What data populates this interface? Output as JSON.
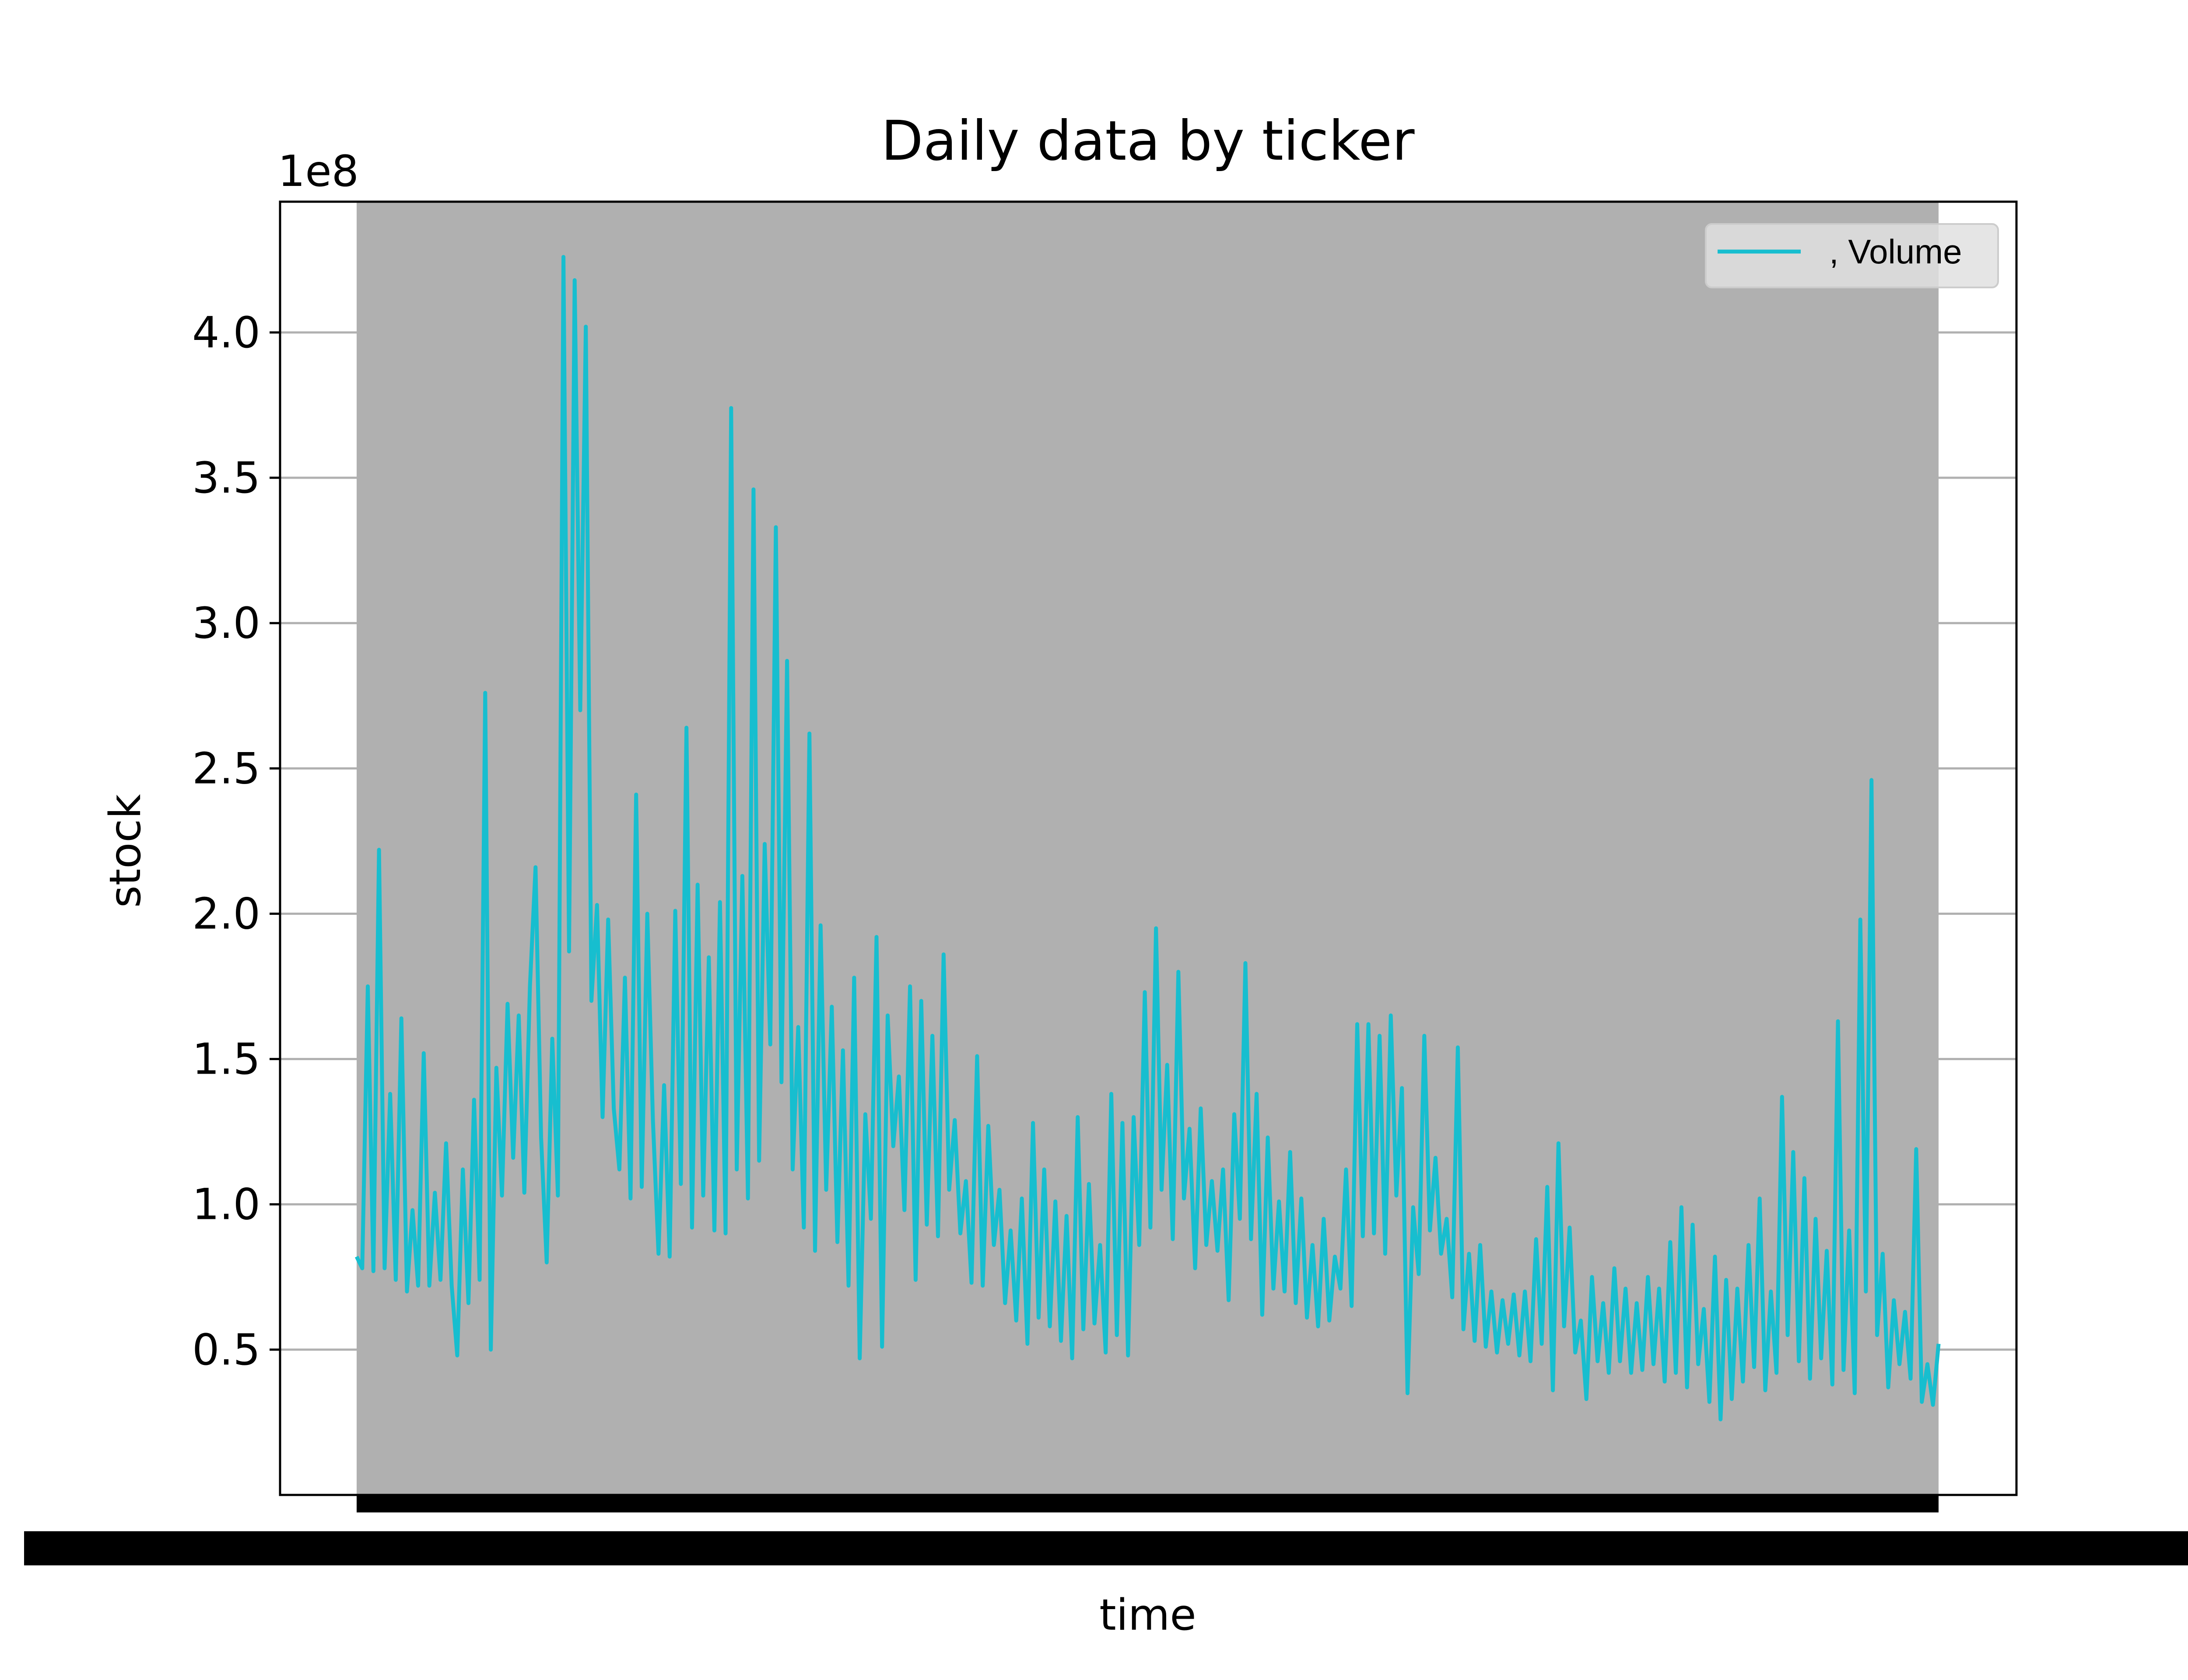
{
  "chart_data": {
    "type": "line",
    "title": "Daily data by ticker",
    "xlabel": "time",
    "ylabel": "stock",
    "y_offset_label": "1e8",
    "ylim": [
      0.0,
      4.45
    ],
    "yticks": [
      0.5,
      1.0,
      1.5,
      2.0,
      2.5,
      3.0,
      3.5,
      4.0
    ],
    "ytick_labels": [
      "0.5",
      "1.0",
      "1.5",
      "2.0",
      "2.5",
      "3.0",
      "3.5",
      "4.0"
    ],
    "grid": "horizontal",
    "legend_position": "upper-right",
    "plot_background": "#b0b0b0",
    "line_color": "#17becf",
    "series": [
      {
        "name": ", Volume",
        "values": [
          0.82,
          0.78,
          1.75,
          0.77,
          2.22,
          0.78,
          1.38,
          0.74,
          1.64,
          0.7,
          0.98,
          0.72,
          1.52,
          0.72,
          1.04,
          0.74,
          1.21,
          0.72,
          0.48,
          1.12,
          0.66,
          1.36,
          0.74,
          2.76,
          0.5,
          1.47,
          1.03,
          1.69,
          1.16,
          1.65,
          1.04,
          1.75,
          2.16,
          1.23,
          0.8,
          1.57,
          1.03,
          4.26,
          1.87,
          4.18,
          2.7,
          4.02,
          1.7,
          2.03,
          1.3,
          1.98,
          1.33,
          1.12,
          1.78,
          1.02,
          2.41,
          1.06,
          2.0,
          1.29,
          0.83,
          1.41,
          0.82,
          2.01,
          1.07,
          2.64,
          0.92,
          2.1,
          1.03,
          1.85,
          0.91,
          2.04,
          0.9,
          3.74,
          1.12,
          2.13,
          1.02,
          3.46,
          1.15,
          2.24,
          1.55,
          3.33,
          1.42,
          2.87,
          1.12,
          1.61,
          0.92,
          2.62,
          0.84,
          1.96,
          1.05,
          1.68,
          0.87,
          1.53,
          0.72,
          1.78,
          0.47,
          1.31,
          0.95,
          1.92,
          0.51,
          1.65,
          1.2,
          1.44,
          0.98,
          1.75,
          0.74,
          1.7,
          0.93,
          1.58,
          0.89,
          1.86,
          1.05,
          1.29,
          0.9,
          1.08,
          0.73,
          1.51,
          0.72,
          1.27,
          0.86,
          1.05,
          0.66,
          0.91,
          0.6,
          1.02,
          0.52,
          1.28,
          0.61,
          1.12,
          0.58,
          1.01,
          0.53,
          0.96,
          0.47,
          1.3,
          0.57,
          1.07,
          0.59,
          0.86,
          0.49,
          1.38,
          0.55,
          1.28,
          0.48,
          1.3,
          0.86,
          1.73,
          0.92,
          1.95,
          1.05,
          1.48,
          0.88,
          1.8,
          1.02,
          1.26,
          0.78,
          1.33,
          0.86,
          1.08,
          0.84,
          1.12,
          0.67,
          1.31,
          0.95,
          1.83,
          0.88,
          1.38,
          0.62,
          1.23,
          0.71,
          1.01,
          0.7,
          1.18,
          0.66,
          1.02,
          0.61,
          0.86,
          0.58,
          0.95,
          0.6,
          0.82,
          0.71,
          1.12,
          0.65,
          1.62,
          0.89,
          1.62,
          0.9,
          1.58,
          0.83,
          1.65,
          1.03,
          1.4,
          0.35,
          0.99,
          0.76,
          1.58,
          0.91,
          1.16,
          0.83,
          0.95,
          0.68,
          1.54,
          0.57,
          0.83,
          0.53,
          0.86,
          0.51,
          0.7,
          0.49,
          0.67,
          0.52,
          0.69,
          0.48,
          0.7,
          0.46,
          0.88,
          0.52,
          1.06,
          0.36,
          1.21,
          0.58,
          0.92,
          0.49,
          0.6,
          0.33,
          0.75,
          0.46,
          0.66,
          0.42,
          0.78,
          0.46,
          0.71,
          0.42,
          0.66,
          0.43,
          0.75,
          0.45,
          0.71,
          0.39,
          0.87,
          0.42,
          0.99,
          0.37,
          0.93,
          0.45,
          0.64,
          0.32,
          0.82,
          0.26,
          0.74,
          0.33,
          0.71,
          0.39,
          0.86,
          0.44,
          1.02,
          0.36,
          0.7,
          0.42,
          1.37,
          0.55,
          1.18,
          0.46,
          1.09,
          0.4,
          0.95,
          0.47,
          0.84,
          0.38,
          1.63,
          0.43,
          0.91,
          0.35,
          1.98,
          0.7,
          2.46,
          0.55,
          0.83,
          0.37,
          0.67,
          0.45,
          0.63,
          0.4,
          1.19,
          0.32,
          0.45,
          0.31,
          0.52
        ]
      }
    ]
  }
}
